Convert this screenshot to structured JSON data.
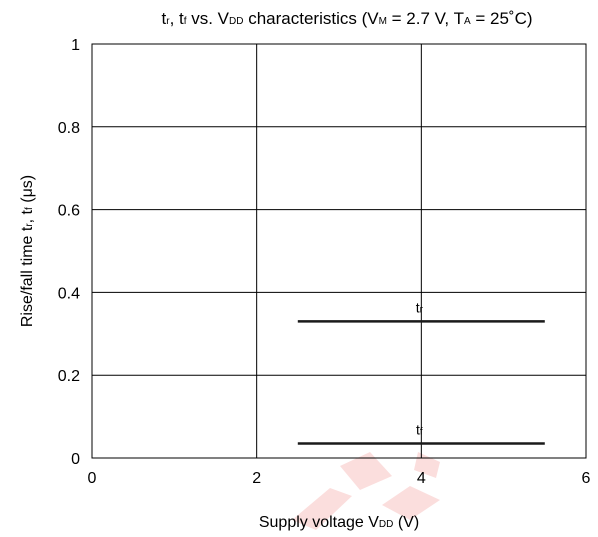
{
  "chart_data": {
    "type": "line",
    "title": {
      "parts": [
        {
          "t": "t"
        },
        {
          "t": "r",
          "sub": true
        },
        {
          "t": ", t"
        },
        {
          "t": "f",
          "sub": true
        },
        {
          "t": " vs. V"
        },
        {
          "t": "DD",
          "sub": true
        },
        {
          "t": " characteristics (V"
        },
        {
          "t": "M",
          "sub": true
        },
        {
          "t": " = 2.7 V, T"
        },
        {
          "t": "A",
          "sub": true
        },
        {
          "t": " = 25˚C)"
        }
      ]
    },
    "xlabel": {
      "parts": [
        {
          "t": "Supply voltage V"
        },
        {
          "t": "DD",
          "sub": true
        },
        {
          "t": " (V)"
        }
      ]
    },
    "ylabel": {
      "parts": [
        {
          "t": "Rise/fall time t"
        },
        {
          "t": "r",
          "sub": true
        },
        {
          "t": ", t"
        },
        {
          "t": "f",
          "sub": true
        },
        {
          "t": " (μs)"
        }
      ]
    },
    "xlim": [
      0,
      6
    ],
    "ylim": [
      0,
      1
    ],
    "x_ticks": [
      "0",
      "2",
      "4",
      "6"
    ],
    "y_ticks": [
      "0",
      "0.2",
      "0.4",
      "0.6",
      "0.8",
      "1"
    ],
    "grid": true,
    "series": [
      {
        "label": {
          "parts": [
            {
              "t": "t"
            },
            {
              "t": "r",
              "sub": true
            }
          ]
        },
        "x": [
          2.5,
          5.5
        ],
        "y": [
          0.33,
          0.33
        ]
      },
      {
        "label": {
          "parts": [
            {
              "t": "t"
            },
            {
              "t": "f",
              "sub": true
            }
          ]
        },
        "x": [
          2.5,
          5.5
        ],
        "y": [
          0.035,
          0.035
        ]
      }
    ]
  },
  "style": {
    "line_color": "#1a1a1a",
    "grid_color": "#000000",
    "watermark_color": "#e8302a"
  }
}
